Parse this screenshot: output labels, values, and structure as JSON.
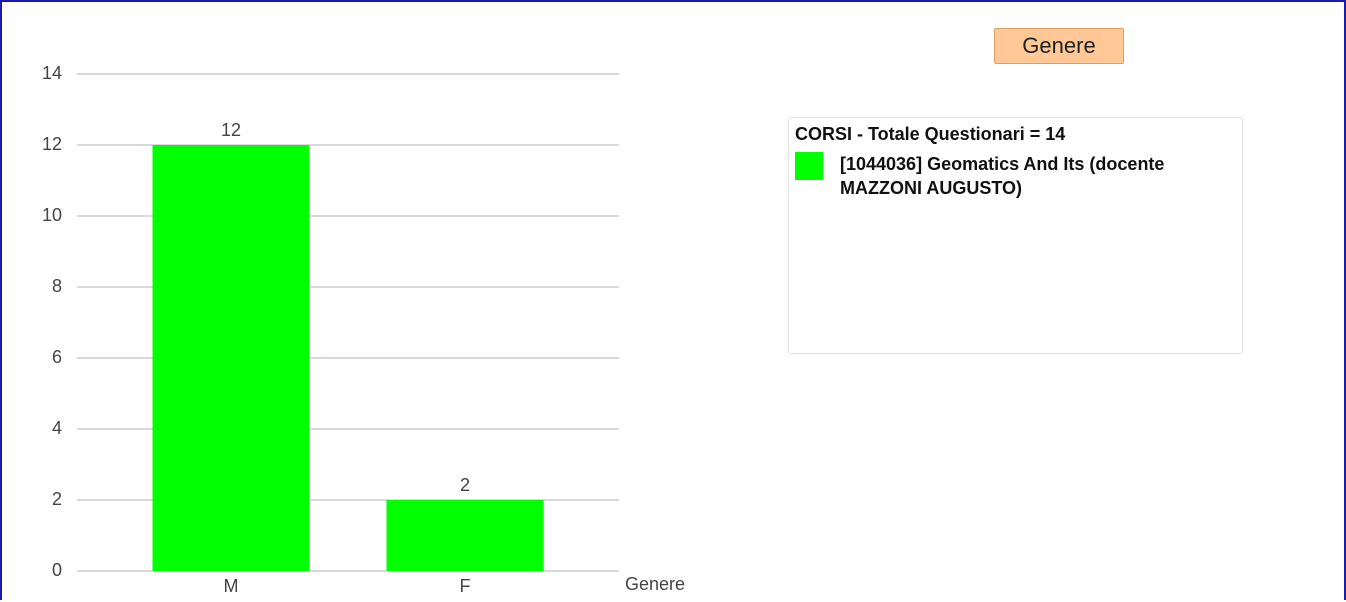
{
  "chart_data": {
    "type": "bar",
    "title": "Genere",
    "x_label": "Genere",
    "legend_title": "CORSI - Totale Questionari = 14",
    "categories": [
      "M",
      "F"
    ],
    "series": [
      {
        "name": "[1044036] Geomatics And Its (docente MAZZONI AUGUSTO)",
        "color": "#00ff00",
        "values": [
          12,
          2
        ]
      }
    ],
    "ylim": [
      0,
      14
    ],
    "yticks": [
      0,
      2,
      4,
      6,
      8,
      10,
      12,
      14
    ],
    "grid": true
  }
}
